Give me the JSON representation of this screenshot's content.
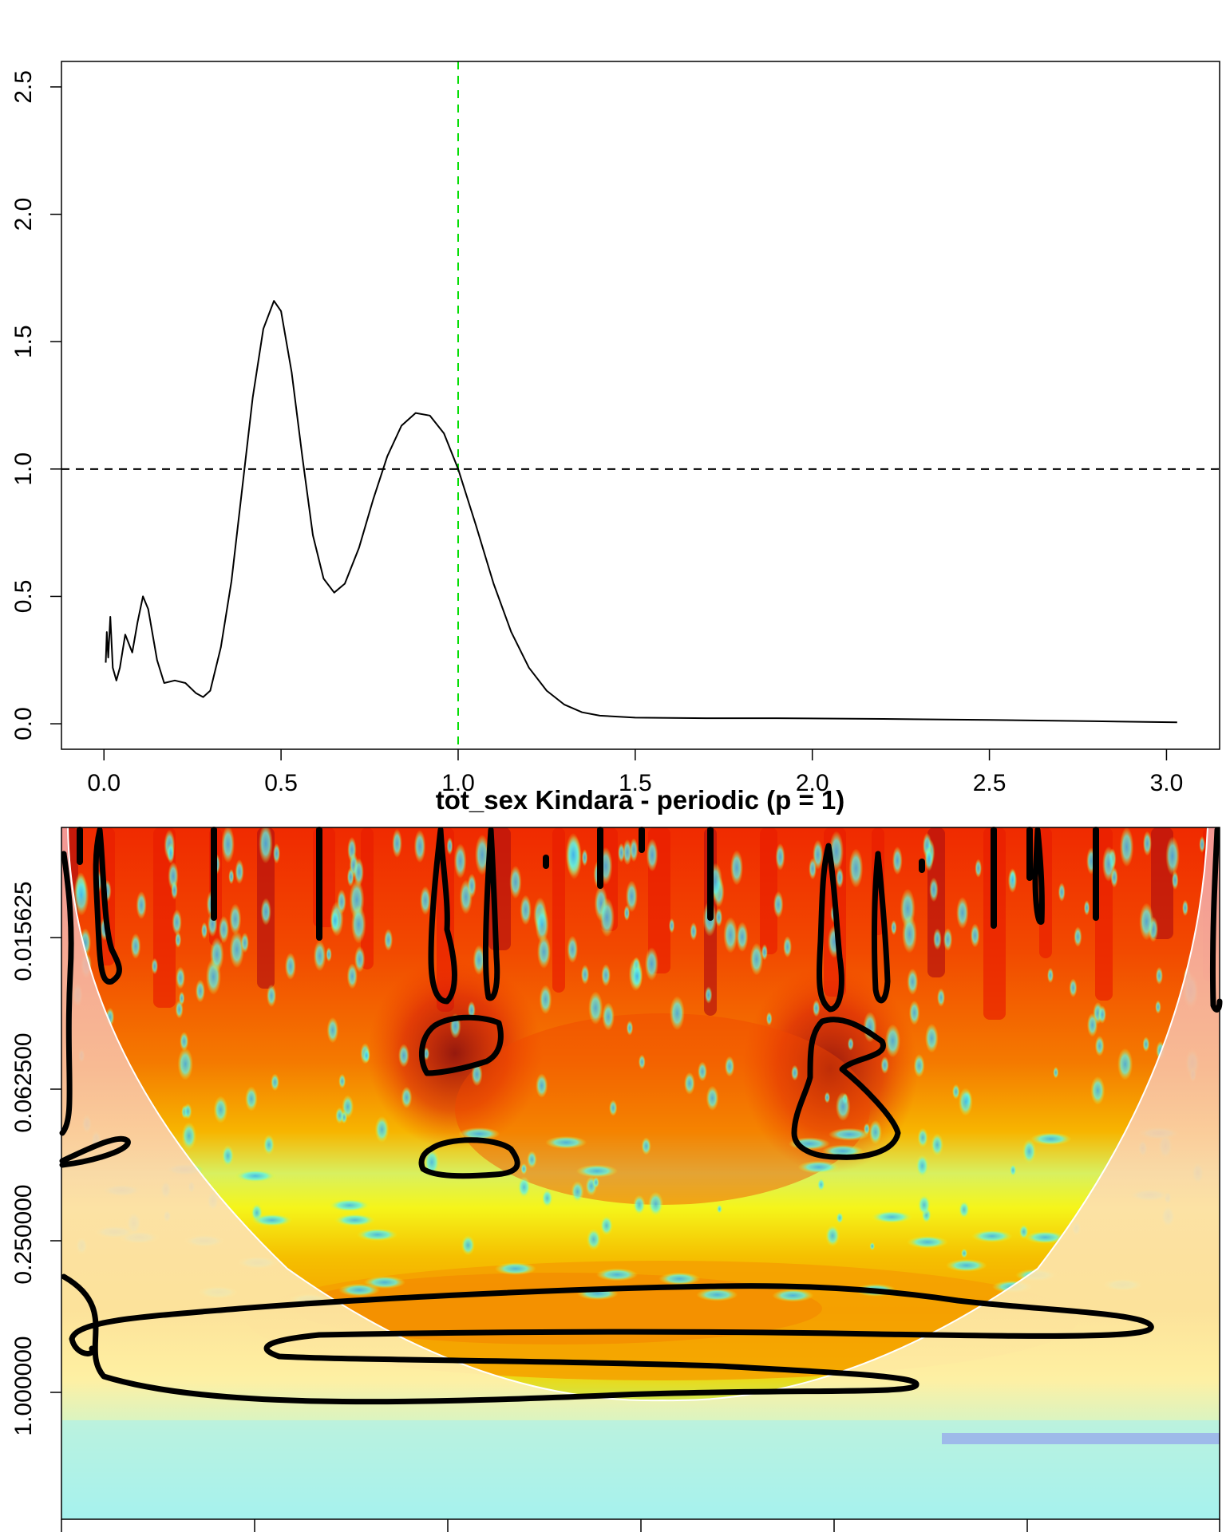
{
  "chart_data": [
    {
      "type": "line",
      "title": "",
      "xlabel": "",
      "ylabel": "",
      "xlim": [
        -0.12,
        3.15
      ],
      "ylim": [
        -0.1,
        2.6
      ],
      "x_ticks": [
        0.0,
        0.5,
        1.0,
        1.5,
        2.0,
        2.5,
        3.0
      ],
      "x_tick_labels": [
        "0.0",
        "0.5",
        "1.0",
        "1.5",
        "2.0",
        "2.5",
        "3.0"
      ],
      "y_ticks": [
        0.0,
        0.5,
        1.0,
        1.5,
        2.0,
        2.5
      ],
      "y_tick_labels": [
        "0.0",
        "0.5",
        "1.0",
        "1.5",
        "2.0",
        "2.5"
      ],
      "reference_lines": [
        {
          "orientation": "horizontal",
          "value": 1.0,
          "style": "dashed",
          "color": "#000000"
        },
        {
          "orientation": "vertical",
          "value": 1.0,
          "style": "dashed",
          "color": "#00dd00"
        }
      ],
      "series": [
        {
          "color": "#000000",
          "points": [
            [
              0.005,
              0.24
            ],
            [
              0.008,
              0.36
            ],
            [
              0.012,
              0.26
            ],
            [
              0.018,
              0.42
            ],
            [
              0.025,
              0.22
            ],
            [
              0.035,
              0.17
            ],
            [
              0.045,
              0.22
            ],
            [
              0.06,
              0.35
            ],
            [
              0.08,
              0.28
            ],
            [
              0.095,
              0.4
            ],
            [
              0.11,
              0.5
            ],
            [
              0.125,
              0.45
            ],
            [
              0.15,
              0.25
            ],
            [
              0.17,
              0.16
            ],
            [
              0.2,
              0.17
            ],
            [
              0.23,
              0.16
            ],
            [
              0.26,
              0.12
            ],
            [
              0.28,
              0.105
            ],
            [
              0.3,
              0.13
            ],
            [
              0.33,
              0.3
            ],
            [
              0.36,
              0.56
            ],
            [
              0.39,
              0.92
            ],
            [
              0.42,
              1.28
            ],
            [
              0.45,
              1.55
            ],
            [
              0.48,
              1.66
            ],
            [
              0.5,
              1.62
            ],
            [
              0.53,
              1.38
            ],
            [
              0.56,
              1.05
            ],
            [
              0.59,
              0.74
            ],
            [
              0.62,
              0.57
            ],
            [
              0.65,
              0.515
            ],
            [
              0.68,
              0.55
            ],
            [
              0.72,
              0.69
            ],
            [
              0.76,
              0.88
            ],
            [
              0.8,
              1.05
            ],
            [
              0.84,
              1.17
            ],
            [
              0.88,
              1.22
            ],
            [
              0.92,
              1.21
            ],
            [
              0.96,
              1.14
            ],
            [
              1.0,
              1.0
            ],
            [
              1.05,
              0.78
            ],
            [
              1.1,
              0.55
            ],
            [
              1.15,
              0.36
            ],
            [
              1.2,
              0.22
            ],
            [
              1.25,
              0.13
            ],
            [
              1.3,
              0.075
            ],
            [
              1.35,
              0.045
            ],
            [
              1.4,
              0.032
            ],
            [
              1.5,
              0.024
            ],
            [
              1.7,
              0.022
            ],
            [
              1.9,
              0.022
            ],
            [
              2.2,
              0.019
            ],
            [
              2.5,
              0.015
            ],
            [
              2.8,
              0.01
            ],
            [
              3.03,
              0.006
            ]
          ]
        }
      ]
    },
    {
      "type": "heatmap",
      "title": "tot_sex Kindara - periodic (p = 1)",
      "xlabel": "",
      "ylabel": "",
      "y_scale": "log2",
      "y_tick_labels": [
        "0.015625",
        "0.062500",
        "0.250000",
        "1.000000"
      ],
      "x_tick_count": 7,
      "colormap": [
        "#8a5cf5",
        "#3db5f0",
        "#66f5e0",
        "#f5f51a",
        "#f5a800",
        "#f03800",
        "#8b0f0f"
      ],
      "significance_contours": [
        {
          "start": "left edge",
          "description": "broad low-frequency contour near 0.5 and 1.000000"
        },
        {
          "description": "small contours around 0.0625 near the first and second peaks"
        }
      ],
      "cone_of_influence": true
    }
  ]
}
